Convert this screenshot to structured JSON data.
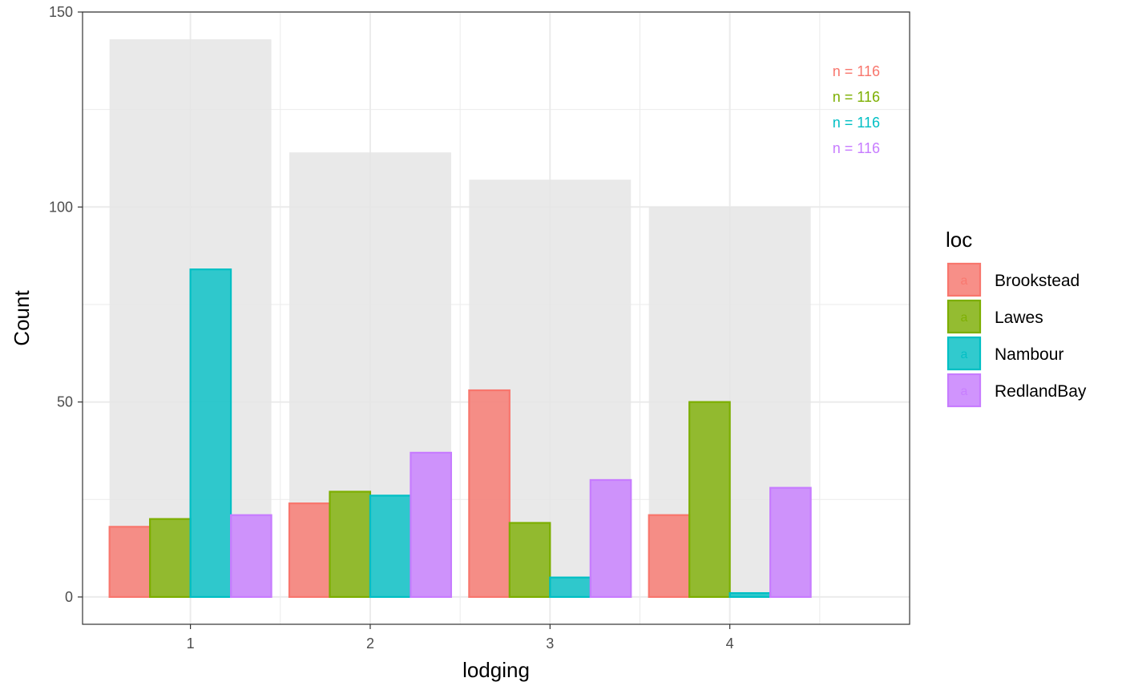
{
  "chart_data": {
    "type": "bar",
    "xlabel": "lodging",
    "ylabel": "Count",
    "categories": [
      "1",
      "2",
      "3",
      "4"
    ],
    "ylim": [
      -7,
      150
    ],
    "yticks": [
      0,
      50,
      100,
      150
    ],
    "grid": true,
    "legend": {
      "title": "loc",
      "placement": "right",
      "glyph": "a",
      "entries": [
        "Brookstead",
        "Lawes",
        "Nambour",
        "RedlandBay"
      ]
    },
    "background_totals": [
      143,
      114,
      107,
      100
    ],
    "background_color": "#e5e5e5",
    "series": [
      {
        "name": "Brookstead",
        "color": "#F8766D",
        "values": [
          18,
          24,
          53,
          21
        ]
      },
      {
        "name": "Lawes",
        "color": "#7CAE00",
        "values": [
          20,
          27,
          19,
          50
        ]
      },
      {
        "name": "Nambour",
        "color": "#00BFC4",
        "values": [
          84,
          26,
          5,
          1
        ]
      },
      {
        "name": "RedlandBay",
        "color": "#C77CFF",
        "values": [
          21,
          37,
          30,
          28
        ]
      }
    ],
    "annotations": [
      {
        "text": "n = 116",
        "color": "#F8766D"
      },
      {
        "text": "n = 116",
        "color": "#7CAE00"
      },
      {
        "text": "n = 116",
        "color": "#00BFC4"
      },
      {
        "text": "n = 116",
        "color": "#C77CFF"
      }
    ]
  }
}
